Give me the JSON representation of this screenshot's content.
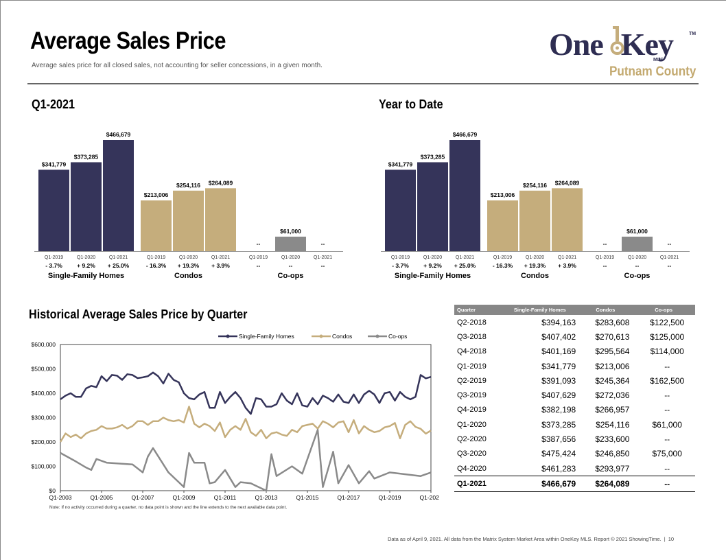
{
  "header": {
    "title": "Average Sales Price",
    "subtitle": "Average sales price for all closed sales, not accounting for seller concessions, in a given month.",
    "logo_text_one": "One",
    "logo_text_key": "Key",
    "logo_tm": "TM",
    "logo_mls": "MLS",
    "county": "Putnam County"
  },
  "colors": {
    "sfh": "#35345a",
    "condo": "#c5ad7c",
    "coop": "#8a8a8a"
  },
  "charts": [
    {
      "title": "Q1-2021",
      "groups": [
        {
          "name": "Single-Family Homes",
          "bars": [
            {
              "period": "Q1-2019",
              "value": 341779,
              "label": "$341,779",
              "change": "- 3.7%"
            },
            {
              "period": "Q1-2020",
              "value": 373285,
              "label": "$373,285",
              "change": "+ 9.2%"
            },
            {
              "period": "Q1-2021",
              "value": 466679,
              "label": "$466,679",
              "change": "+ 25.0%"
            }
          ]
        },
        {
          "name": "Condos",
          "bars": [
            {
              "period": "Q1-2019",
              "value": 213006,
              "label": "$213,006",
              "change": "- 16.3%"
            },
            {
              "period": "Q1-2020",
              "value": 254116,
              "label": "$254,116",
              "change": "+ 19.3%"
            },
            {
              "period": "Q1-2021",
              "value": 264089,
              "label": "$264,089",
              "change": "+ 3.9%"
            }
          ]
        },
        {
          "name": "Co-ops",
          "bars": [
            {
              "period": "Q1-2019",
              "value": null,
              "label": "--",
              "change": "--"
            },
            {
              "period": "Q1-2020",
              "value": 61000,
              "label": "$61,000",
              "change": "--"
            },
            {
              "period": "Q1-2021",
              "value": null,
              "label": "--",
              "change": "--"
            }
          ]
        }
      ]
    },
    {
      "title": "Year to Date",
      "groups": [
        {
          "name": "Single-Family Homes",
          "bars": [
            {
              "period": "Q1-2019",
              "value": 341779,
              "label": "$341,779",
              "change": "- 3.7%"
            },
            {
              "period": "Q1-2020",
              "value": 373285,
              "label": "$373,285",
              "change": "+ 9.2%"
            },
            {
              "period": "Q1-2021",
              "value": 466679,
              "label": "$466,679",
              "change": "+ 25.0%"
            }
          ]
        },
        {
          "name": "Condos",
          "bars": [
            {
              "period": "Q1-2019",
              "value": 213006,
              "label": "$213,006",
              "change": "- 16.3%"
            },
            {
              "period": "Q1-2020",
              "value": 254116,
              "label": "$254,116",
              "change": "+ 19.3%"
            },
            {
              "period": "Q1-2021",
              "value": 264089,
              "label": "$264,089",
              "change": "+ 3.9%"
            }
          ]
        },
        {
          "name": "Co-ops",
          "bars": [
            {
              "period": "Q1-2019",
              "value": null,
              "label": "--",
              "change": "--"
            },
            {
              "period": "Q1-2020",
              "value": 61000,
              "label": "$61,000",
              "change": "--"
            },
            {
              "period": "Q1-2021",
              "value": null,
              "label": "--",
              "change": "--"
            }
          ]
        }
      ]
    }
  ],
  "chart_data": {
    "type": "line",
    "title": "Historical Average Sales Price by Quarter",
    "x_ticks": [
      "Q1-2003",
      "Q1-2005",
      "Q1-2007",
      "Q1-2009",
      "Q1-2011",
      "Q1-2013",
      "Q1-2015",
      "Q1-2017",
      "Q1-2019",
      "Q1-2021"
    ],
    "y_ticks": [
      "$0",
      "$100,000",
      "$200,000",
      "$300,000",
      "$400,000",
      "$500,000",
      "$600,000"
    ],
    "ylim": [
      0,
      600000
    ],
    "legend_position": "top",
    "x_quarters_from_Q1_2003": [
      0,
      1,
      2,
      3,
      4,
      5,
      6,
      7,
      8,
      9,
      10,
      11,
      12,
      13,
      14,
      15,
      16,
      17,
      18,
      19,
      20,
      21,
      22,
      23,
      24,
      25,
      26,
      27,
      28,
      29,
      30,
      31,
      32,
      33,
      34,
      35,
      36,
      37,
      38,
      39,
      40,
      41,
      42,
      43,
      44,
      45,
      46,
      47,
      48,
      49,
      50,
      51,
      52,
      53,
      54,
      55,
      56,
      57,
      58,
      59,
      60,
      61,
      62,
      63,
      64,
      65,
      66,
      67,
      68,
      69,
      70,
      71,
      72
    ],
    "series": [
      {
        "name": "Single-Family Homes",
        "values": [
          375000,
          390000,
          400000,
          385000,
          385000,
          420000,
          430000,
          425000,
          470000,
          450000,
          475000,
          472000,
          455000,
          478000,
          475000,
          462000,
          465000,
          470000,
          485000,
          470000,
          440000,
          480000,
          455000,
          445000,
          400000,
          380000,
          375000,
          395000,
          405000,
          340000,
          340000,
          405000,
          360000,
          385000,
          405000,
          380000,
          340000,
          315000,
          380000,
          375000,
          345000,
          345000,
          355000,
          400000,
          370000,
          355000,
          400000,
          350000,
          345000,
          380000,
          355000,
          390000,
          380000,
          365000,
          395000,
          365000,
          360000,
          395000,
          360000,
          395000,
          410000,
          395000,
          360000,
          400000,
          405000,
          370000,
          405000,
          385000,
          375000,
          385000,
          475000,
          461000,
          467000
        ]
      },
      {
        "name": "Condos",
        "values": [
          200000,
          235000,
          220000,
          230000,
          215000,
          235000,
          245000,
          250000,
          265000,
          255000,
          255000,
          260000,
          270000,
          255000,
          265000,
          285000,
          285000,
          270000,
          285000,
          285000,
          300000,
          290000,
          285000,
          290000,
          280000,
          345000,
          275000,
          260000,
          275000,
          265000,
          245000,
          280000,
          220000,
          250000,
          265000,
          250000,
          295000,
          240000,
          225000,
          250000,
          215000,
          235000,
          240000,
          230000,
          225000,
          250000,
          240000,
          265000,
          270000,
          275000,
          255000,
          285000,
          275000,
          260000,
          280000,
          285000,
          240000,
          290000,
          235000,
          265000,
          250000,
          240000,
          245000,
          260000,
          265000,
          278000,
          215000,
          270000,
          285000,
          262000,
          254000,
          234000,
          247000
        ]
      },
      {
        "name": "Co-ops",
        "values": [
          155000,
          null,
          null,
          120000,
          null,
          95000,
          85000,
          130000,
          null,
          115000,
          null,
          null,
          null,
          null,
          108000,
          null,
          75000,
          140000,
          175000,
          null,
          null,
          75000,
          null,
          null,
          15000,
          155000,
          115000,
          null,
          115000,
          30000,
          35000,
          null,
          85000,
          null,
          15000,
          35000,
          null,
          30000,
          20000,
          null,
          0,
          150000,
          60000,
          null,
          null,
          100000,
          85000,
          70000,
          null,
          null,
          250000,
          15000,
          null,
          160000,
          30000,
          null,
          105000,
          null,
          30000,
          null,
          80000,
          50000,
          null,
          null,
          75000,
          null,
          null,
          null,
          null,
          null,
          60000,
          null,
          75000
        ]
      }
    ],
    "note": "Note: If no activity occurred during a quarter, no data point is shown and the line extends to the next available data point."
  },
  "table": {
    "headers": [
      "Quarter",
      "Single-Family Homes",
      "Condos",
      "Co-ops"
    ],
    "rows": [
      [
        "Q2-2018",
        "$394,163",
        "$283,608",
        "$122,500"
      ],
      [
        "Q3-2018",
        "$407,402",
        "$270,613",
        "$125,000"
      ],
      [
        "Q4-2018",
        "$401,169",
        "$295,564",
        "$114,000"
      ],
      [
        "Q1-2019",
        "$341,779",
        "$213,006",
        "--"
      ],
      [
        "Q2-2019",
        "$391,093",
        "$245,364",
        "$162,500"
      ],
      [
        "Q3-2019",
        "$407,629",
        "$272,036",
        "--"
      ],
      [
        "Q4-2019",
        "$382,198",
        "$266,957",
        "--"
      ],
      [
        "Q1-2020",
        "$373,285",
        "$254,116",
        "$61,000"
      ],
      [
        "Q2-2020",
        "$387,656",
        "$233,600",
        "--"
      ],
      [
        "Q3-2020",
        "$475,424",
        "$246,850",
        "$75,000"
      ],
      [
        "Q4-2020",
        "$461,283",
        "$293,977",
        "--"
      ],
      [
        "Q1-2021",
        "$466,679",
        "$264,089",
        "--"
      ]
    ]
  },
  "footer": {
    "text": "Data as of April 9, 2021. All data from the Matrix System Market Area within OneKey MLS. Report © 2021 ShowingTime.",
    "sep": "|",
    "page": "10"
  }
}
